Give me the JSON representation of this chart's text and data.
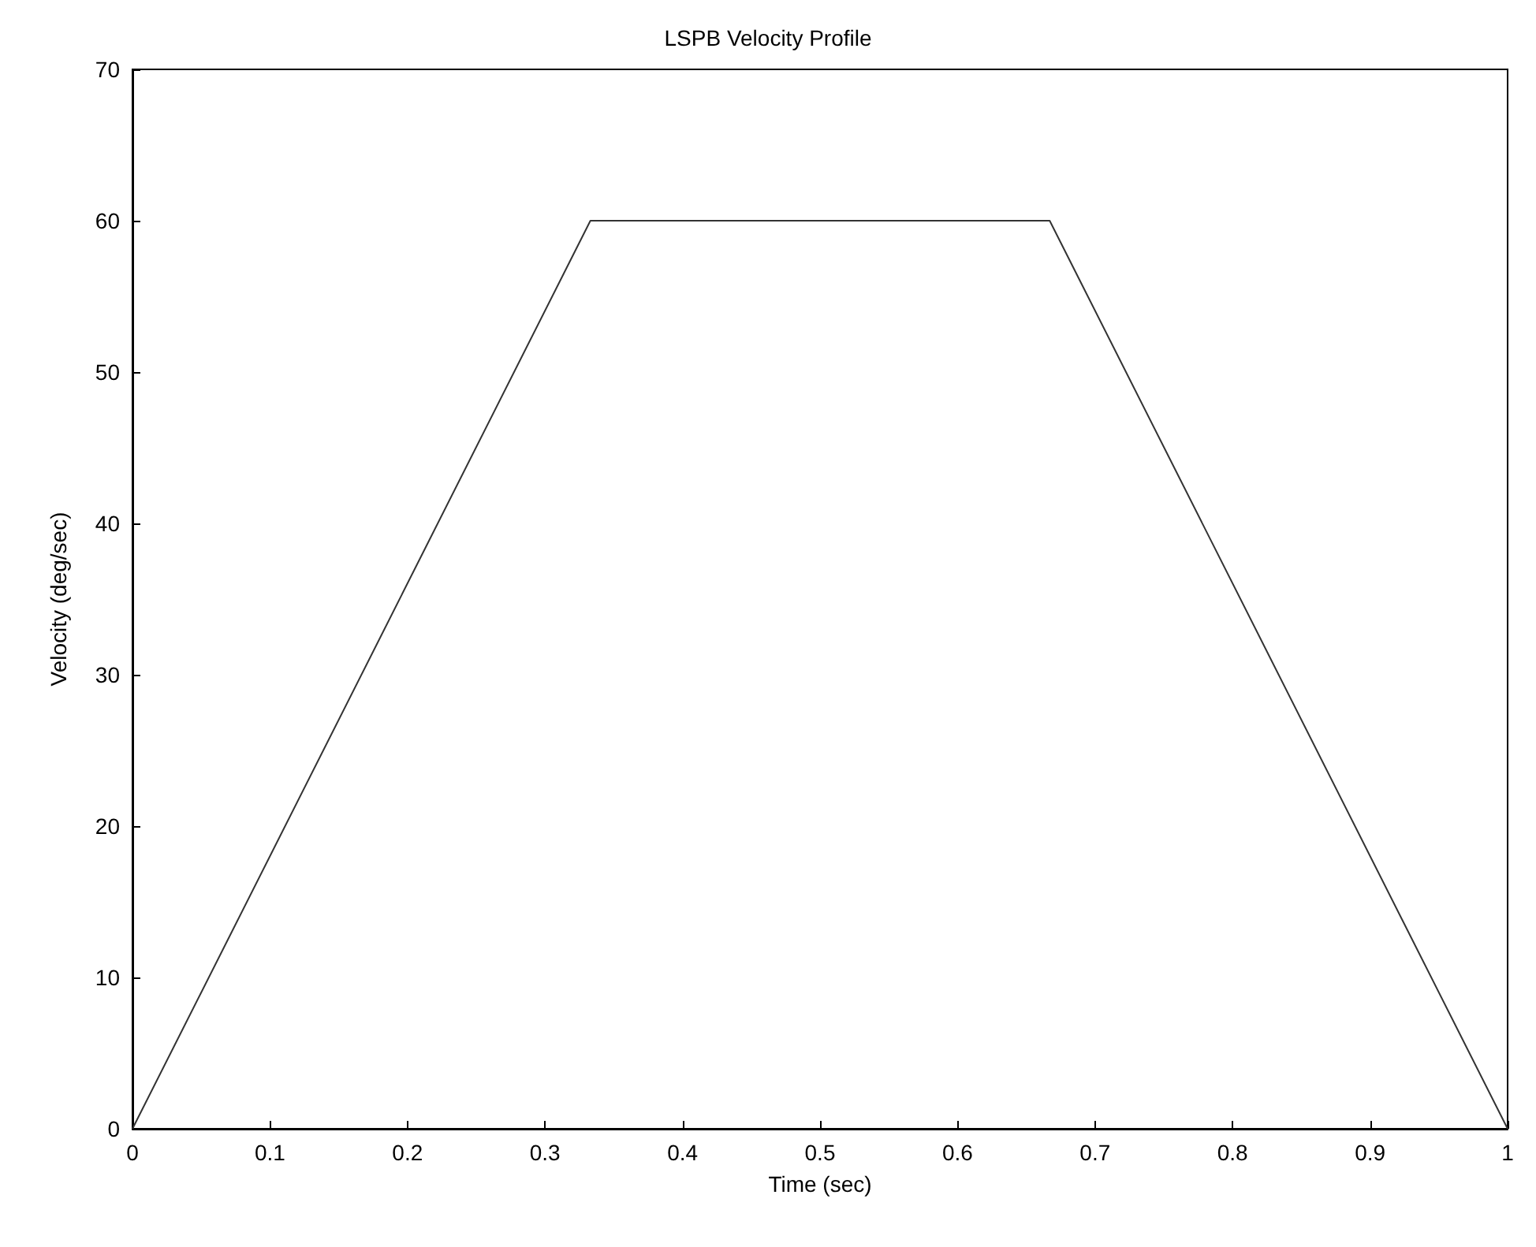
{
  "chart_data": {
    "type": "line",
    "title": "LSPB Velocity Profile",
    "xlabel": "Time (sec)",
    "ylabel": "Velocity (deg/sec)",
    "x": [
      0,
      0.333,
      0.667,
      1
    ],
    "series": [
      {
        "color": "#333333",
        "values": [
          0,
          60,
          60,
          0
        ]
      }
    ],
    "xlim": [
      0,
      1
    ],
    "xticks": [
      0,
      0.1,
      0.2,
      0.3,
      0.4,
      0.5,
      0.6,
      0.7,
      0.8,
      0.9,
      1
    ],
    "ylim": [
      0,
      70
    ],
    "yticks": [
      0,
      10,
      20,
      30,
      40,
      50,
      60,
      70
    ],
    "grid": false,
    "marker": "none",
    "line_style": "solid"
  }
}
